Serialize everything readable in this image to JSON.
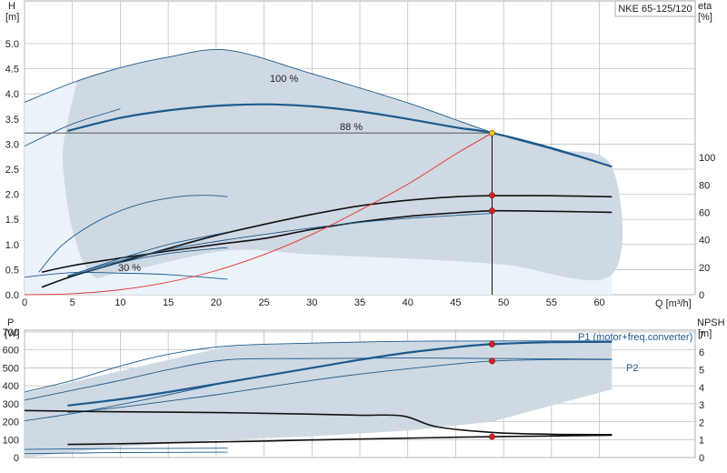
{
  "chart_data": [
    {
      "type": "line",
      "title": "NKE 65-125/120",
      "x_axis_label": "Q [m³/h]",
      "left_axis": {
        "symbol": "H",
        "unit": "[m]"
      },
      "right_axis": {
        "symbol": "eta",
        "unit": "[%]"
      },
      "x_ticks": [
        0,
        5,
        10,
        15,
        20,
        25,
        30,
        35,
        40,
        45,
        50,
        55,
        60
      ],
      "y_ticks": [
        0.0,
        0.5,
        1.0,
        1.5,
        2.0,
        2.5,
        3.0,
        3.5,
        4.0,
        4.5,
        5.0
      ],
      "y_tick_labels": [
        "0.0",
        "0.5",
        "1.0",
        "1.5",
        "2.0",
        "2.5",
        "3.0",
        "3.5",
        "4.0",
        "4.5",
        "5.0"
      ],
      "y2_ticks": [
        0,
        20,
        40,
        60,
        80,
        100
      ],
      "xlim": [
        0,
        70
      ],
      "ylim": [
        0,
        5.85
      ],
      "y2lim": [
        0,
        214
      ],
      "grid": true,
      "speed_labels": [
        "100 %",
        "88 %",
        "30 %"
      ],
      "envelope_outer": [
        [
          0,
          3.83
        ],
        [
          5,
          4.22
        ],
        [
          10,
          4.52
        ],
        [
          15,
          4.73
        ],
        [
          21.2,
          4.87
        ],
        [
          30,
          4.4
        ],
        [
          40,
          3.82
        ],
        [
          48.8,
          3.23
        ],
        [
          55,
          2.9
        ],
        [
          61.3,
          2.55
        ],
        [
          61.3,
          0.0
        ],
        [
          0,
          0.0
        ]
      ],
      "envelope_region": [
        [
          5.5,
          4.27
        ],
        [
          10,
          4.52
        ],
        [
          15,
          4.73
        ],
        [
          21.2,
          4.87
        ],
        [
          30,
          4.4
        ],
        [
          40,
          3.82
        ],
        [
          48.8,
          3.23
        ],
        [
          55,
          2.9
        ],
        [
          61.3,
          2.55
        ],
        [
          61.3,
          0.4
        ],
        [
          50,
          0.6
        ],
        [
          40,
          0.72
        ],
        [
          30,
          0.8
        ],
        [
          21.2,
          0.88
        ],
        [
          10,
          0.44
        ],
        [
          7,
          0.4
        ],
        [
          5,
          1.3
        ],
        [
          4,
          2.6
        ],
        [
          4.3,
          3.3
        ]
      ],
      "series": [
        {
          "name": "100 %",
          "x": [
            0,
            5,
            10,
            15,
            21.2,
            30,
            40,
            48.8,
            55,
            61.3
          ],
          "y": [
            3.83,
            4.22,
            4.52,
            4.73,
            4.87,
            4.4,
            3.82,
            3.23,
            2.9,
            2.55
          ]
        },
        {
          "name": "88 %",
          "x": [
            4.5,
            10,
            15,
            20,
            25,
            30,
            35,
            40,
            45,
            48.8,
            55,
            61.3
          ],
          "y": [
            3.26,
            3.52,
            3.67,
            3.76,
            3.79,
            3.75,
            3.65,
            3.5,
            3.33,
            3.22,
            2.92,
            2.55
          ]
        },
        {
          "name": "",
          "x": [
            0,
            5,
            10
          ],
          "y": [
            2.96,
            3.4,
            3.7
          ]
        },
        {
          "name": "30 %",
          "x": [
            0,
            5,
            10,
            15,
            21.2
          ],
          "y": [
            0.35,
            0.44,
            0.43,
            0.4,
            0.31
          ]
        },
        {
          "name": "",
          "x": [
            1.8,
            5,
            10,
            15,
            20,
            25,
            30,
            35,
            40,
            45,
            48.8,
            55,
            61.3
          ],
          "y": [
            0.45,
            0.58,
            0.73,
            0.87,
            1.0,
            1.12,
            1.3,
            1.45,
            1.56,
            1.63,
            1.67,
            1.66,
            1.64
          ]
        },
        {
          "name": "",
          "x": [
            1.8,
            5,
            10,
            15,
            20,
            25,
            30,
            35,
            40,
            45,
            48.8,
            55,
            61.3
          ],
          "y": [
            0.15,
            0.37,
            0.65,
            0.92,
            1.18,
            1.4,
            1.6,
            1.77,
            1.88,
            1.95,
            1.97,
            1.97,
            1.95
          ]
        },
        {
          "name": "",
          "x": [
            4.5,
            10,
            15,
            20,
            21.2
          ],
          "y": [
            0.37,
            0.72,
            1.0,
            1.2,
            1.25
          ]
        },
        {
          "name": "",
          "x": [
            1.5,
            4,
            8,
            12,
            16,
            19,
            21.2
          ],
          "y": [
            0.45,
            1.0,
            1.5,
            1.8,
            1.95,
            1.98,
            1.95
          ]
        },
        {
          "name": "",
          "x": [
            4.5,
            10,
            15,
            20,
            25,
            30,
            35,
            40,
            45,
            48.8
          ],
          "y": [
            0.38,
            0.68,
            0.9,
            1.06,
            1.2,
            1.33,
            1.44,
            1.52,
            1.58,
            1.62
          ]
        },
        {
          "name": "",
          "x": [
            4.5,
            10,
            15,
            20,
            21.2
          ],
          "y": [
            0.36,
            0.64,
            0.82,
            0.92,
            0.93
          ]
        },
        {
          "name": "",
          "x": [
            0,
            5,
            10,
            15,
            20,
            25,
            30,
            35,
            40,
            45,
            48.8
          ],
          "y": [
            0.0,
            0.02,
            0.1,
            0.25,
            0.48,
            0.8,
            1.2,
            1.68,
            2.2,
            2.8,
            3.22
          ]
        }
      ],
      "operating_points": [
        {
          "x": 48.8,
          "y": 3.22
        },
        {
          "x": 48.8,
          "y": 1.98
        },
        {
          "x": 48.8,
          "y": 1.67
        }
      ],
      "reference_h": 3.22,
      "colors": {
        "envelope": "#cfd9e3",
        "envelope_light": "#eaf2fa",
        "curve": "#1d5a8e",
        "system_curve": "#e8302a",
        "marker": "#e21b1b",
        "marker_op": "#f5c518"
      }
    },
    {
      "type": "line",
      "left_axis": {
        "symbol": "P",
        "unit": "[W]"
      },
      "right_axis": {
        "symbol": "NPSH",
        "unit": "[m]"
      },
      "x_ticks": [
        0,
        5,
        10,
        15,
        20,
        25,
        30,
        35,
        40,
        45,
        50,
        55,
        60
      ],
      "y_ticks": [
        0,
        100,
        200,
        300,
        400,
        500,
        600,
        700
      ],
      "y2_ticks": [
        0,
        1,
        2,
        3,
        4,
        5,
        6,
        7
      ],
      "xlim": [
        0,
        70
      ],
      "ylim": [
        0,
        710
      ],
      "y2lim": [
        0,
        7.25
      ],
      "grid": true,
      "series_labels": [
        "P1 (motor+freq.converter)",
        "P2"
      ],
      "envelope_outer": [
        [
          0,
          360
        ],
        [
          21.2,
          620
        ],
        [
          30,
          638
        ],
        [
          40,
          648
        ],
        [
          50,
          650
        ],
        [
          61.3,
          650
        ],
        [
          61.3,
          380
        ],
        [
          55,
          290
        ],
        [
          48.8,
          200
        ],
        [
          40,
          150
        ],
        [
          30,
          118
        ],
        [
          21.2,
          100
        ],
        [
          10,
          60
        ],
        [
          0,
          0
        ]
      ],
      "series": [
        {
          "name": "P1 (motor+freq.converter)",
          "x": [
            4.5,
            10,
            15,
            20,
            25,
            30,
            35,
            40,
            45,
            48.8,
            55,
            61.3
          ],
          "y": [
            290,
            325,
            365,
            410,
            455,
            500,
            545,
            585,
            615,
            632,
            643,
            645
          ]
        },
        {
          "name": "P2",
          "x": [
            4.5,
            10,
            15,
            20,
            25,
            30,
            35,
            40,
            45,
            48.8,
            55,
            61.3
          ],
          "y": [
            250,
            280,
            315,
            350,
            390,
            430,
            465,
            495,
            522,
            538,
            546,
            546
          ]
        },
        {
          "name": "",
          "x": [
            0,
            5,
            10,
            15,
            21.2,
            30,
            40,
            50,
            61.3
          ],
          "y": [
            365,
            430,
            510,
            575,
            622,
            638,
            648,
            650,
            650
          ]
        },
        {
          "name": "",
          "x": [
            0,
            5,
            10,
            15,
            21.2,
            30,
            40,
            50,
            61.3
          ],
          "y": [
            320,
            375,
            430,
            490,
            545,
            552,
            555,
            552,
            548
          ]
        },
        {
          "name": "",
          "x": [
            0,
            5,
            10,
            15,
            21.2
          ],
          "y": [
            205,
            245,
            295,
            350,
            420
          ]
        },
        {
          "name": "",
          "x": [
            0,
            5,
            10,
            21.2
          ],
          "y": [
            45,
            48,
            50,
            52
          ]
        },
        {
          "name": "",
          "x": [
            0,
            5,
            10,
            21.2
          ],
          "y": [
            22,
            25,
            28,
            30
          ]
        },
        {
          "name": "",
          "x": [
            4.5,
            10,
            15,
            20,
            25,
            30,
            35,
            40,
            45,
            48.8,
            55,
            61.3
          ],
          "y": [
            73,
            77,
            82,
            87,
            92,
            98,
            103,
            108,
            113,
            116,
            120,
            125
          ]
        },
        {
          "name": "",
          "x": [
            0,
            5,
            10,
            21.2,
            30,
            35,
            39.5,
            43,
            48.8,
            55,
            61.3
          ],
          "y": [
            262,
            258,
            255,
            250,
            242,
            236,
            232,
            172,
            140,
            130,
            128
          ]
        }
      ],
      "operating_points": [
        {
          "x": 48.8,
          "y": 632
        },
        {
          "x": 48.8,
          "y": 538
        },
        {
          "x": 48.8,
          "y": 116
        }
      ],
      "colors": {
        "envelope": "#cfd9e3",
        "curve": "#1d5a8e",
        "marker": "#e21b1b"
      }
    }
  ]
}
